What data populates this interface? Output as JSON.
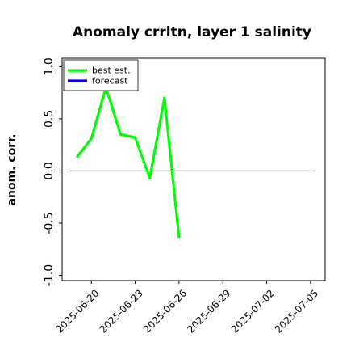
{
  "chart_data": {
    "type": "line",
    "title": "Anomaly crrltn, layer 1 salinity",
    "xlabel": "",
    "ylabel": "anom. corr.",
    "x_ticks": [
      "2025-06-20",
      "2025-06-23",
      "2025-06-26",
      "2025-06-29",
      "2025-07-02",
      "2025-07-05"
    ],
    "highlighted_tick": "2025-06-26",
    "highlight_color": "#228b22",
    "xlim": [
      "2025-06-18",
      "2025-07-06"
    ],
    "y_ticks": [
      "-1.0",
      "-0.5",
      "0.0",
      "0.5",
      "1.0"
    ],
    "ylim": [
      -1.05,
      1.08
    ],
    "reference_line": 0.0,
    "grid": false,
    "legend": {
      "placement": "top-left",
      "entries": [
        {
          "label": "best est.",
          "color": "#00ff00"
        },
        {
          "label": "forecast",
          "color": "#0000ff"
        }
      ]
    },
    "series": [
      {
        "name": "best est.",
        "color": "#00ff00",
        "points": [
          {
            "x": "2025-06-19",
            "y": 0.13
          },
          {
            "x": "2025-06-20",
            "y": 0.31
          },
          {
            "x": "2025-06-21",
            "y": 0.8
          },
          {
            "x": "2025-06-22",
            "y": 0.35
          },
          {
            "x": "2025-06-23",
            "y": 0.32
          },
          {
            "x": "2025-06-24",
            "y": -0.07
          },
          {
            "x": "2025-06-25",
            "y": 0.7
          },
          {
            "x": "2025-06-26",
            "y": -0.64
          }
        ]
      },
      {
        "name": "forecast",
        "color": "#0000ff",
        "points": []
      }
    ]
  }
}
